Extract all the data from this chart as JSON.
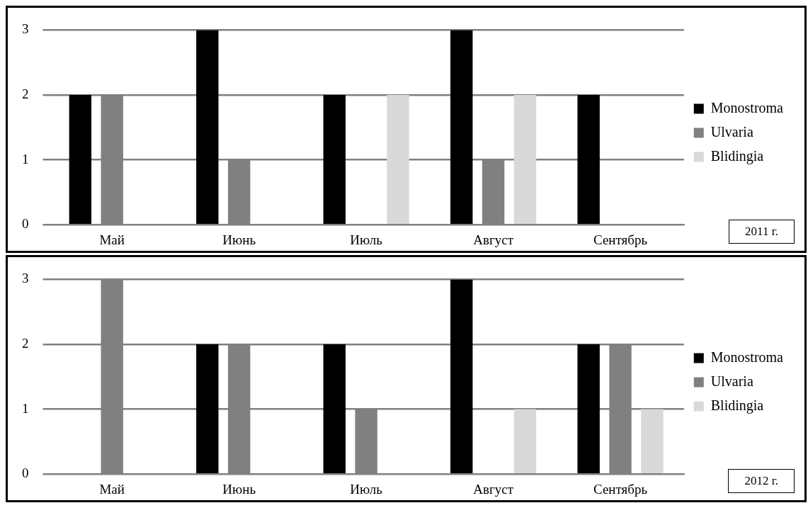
{
  "chart_data": [
    {
      "type": "bar",
      "categories": [
        "Май",
        "Июнь",
        "Июль",
        "Август",
        "Сентябрь"
      ],
      "ylim": [
        0,
        3
      ],
      "yticks": [
        0,
        1,
        2,
        3
      ],
      "grid": "y",
      "legend": "right",
      "annotations": [
        "2011 г."
      ],
      "series": [
        {
          "name": "Monostroma",
          "color": "#000000",
          "values": [
            2,
            3,
            2,
            3,
            2
          ]
        },
        {
          "name": "Ulvaria",
          "color": "#808080",
          "values": [
            2,
            1,
            0,
            1,
            0
          ]
        },
        {
          "name": "Blidingia",
          "color": "#d9d9d9",
          "values": [
            0,
            0,
            2,
            2,
            0
          ]
        }
      ]
    },
    {
      "type": "bar",
      "categories": [
        "Май",
        "Июнь",
        "Июль",
        "Август",
        "Сентябрь"
      ],
      "ylim": [
        0,
        3
      ],
      "yticks": [
        0,
        1,
        2,
        3
      ],
      "grid": "y",
      "legend": "right",
      "annotations": [
        "2012 г."
      ],
      "series": [
        {
          "name": "Monostroma",
          "color": "#000000",
          "values": [
            0,
            2,
            2,
            3,
            2
          ]
        },
        {
          "name": "Ulvaria",
          "color": "#808080",
          "values": [
            3,
            2,
            1,
            0,
            2
          ]
        },
        {
          "name": "Blidingia",
          "color": "#d9d9d9",
          "values": [
            0,
            0,
            0,
            1,
            1
          ]
        }
      ]
    }
  ]
}
